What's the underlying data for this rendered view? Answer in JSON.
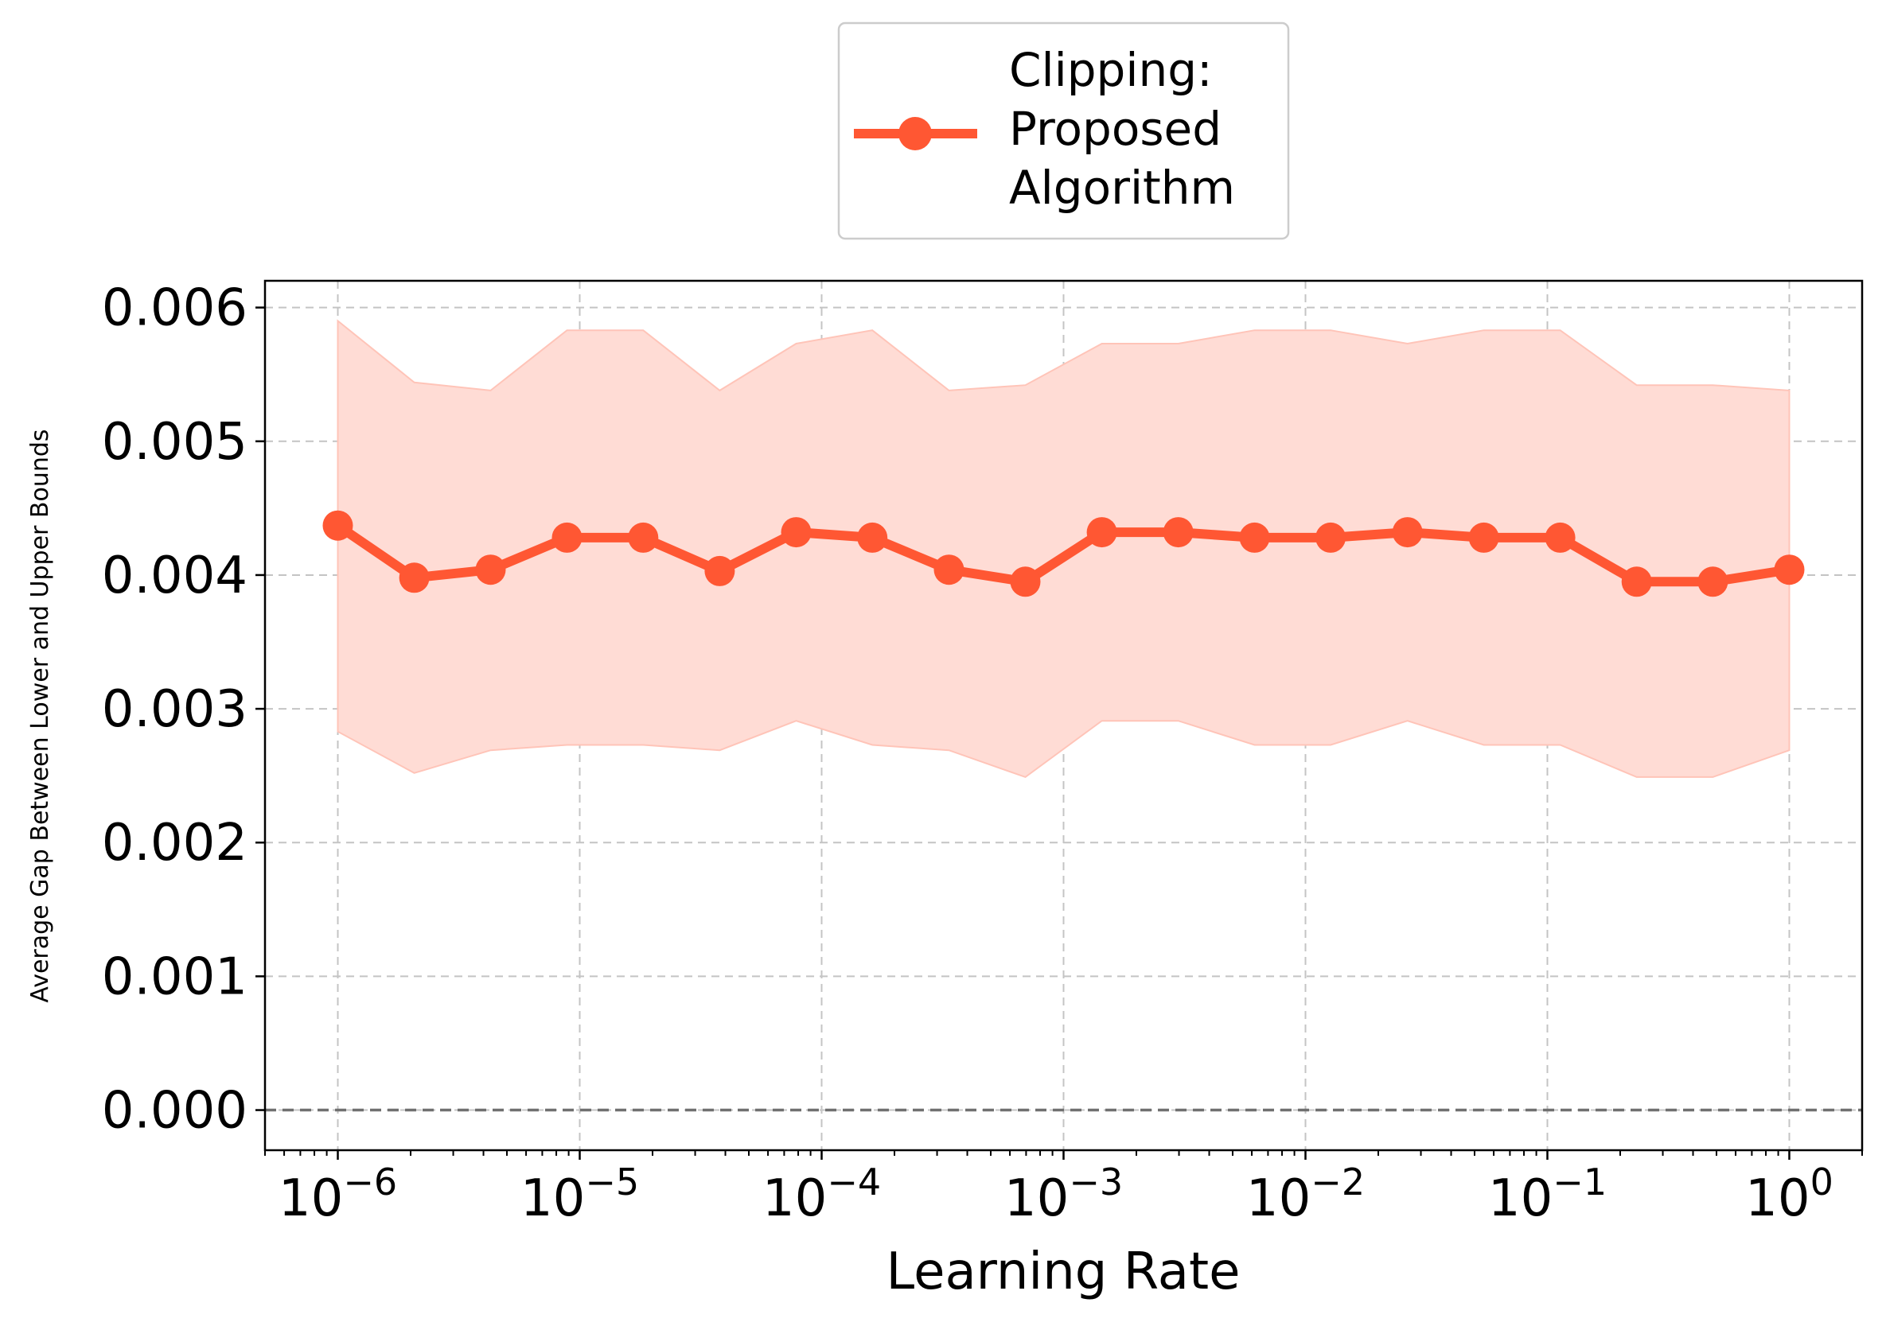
{
  "chart_data": {
    "type": "line",
    "xlabel": "Learning Rate",
    "ylabel": "Average Gap Between Lower and Upper Bounds",
    "xscale": "log",
    "xlim": [
      5e-07,
      2.0
    ],
    "ylim": [
      -0.0003,
      0.0062
    ],
    "grid": true,
    "legend_position": "above plot, centered",
    "x_ticks": [
      1e-06,
      1e-05,
      0.0001,
      0.001,
      0.01,
      0.1,
      1
    ],
    "x_tick_exponents": [
      "−6",
      "−5",
      "−4",
      "−3",
      "−2",
      "−1",
      "0"
    ],
    "x_tick_base": "10",
    "y_ticks": [
      "0.000",
      "0.001",
      "0.002",
      "0.003",
      "0.004",
      "0.005",
      "0.006"
    ],
    "reference_line": {
      "y": 0.0,
      "style": "dashed",
      "color": "#707070"
    },
    "x": [
      1e-06,
      2.07e-06,
      4.28e-06,
      8.86e-06,
      1.83e-05,
      3.79e-05,
      7.85e-05,
      0.000162,
      0.000336,
      0.000695,
      0.00144,
      0.00298,
      0.00616,
      0.0127,
      0.0264,
      0.0546,
      0.113,
      0.234,
      0.483,
      1.0
    ],
    "series": [
      {
        "name": "Clipping:\nProposed\nAlgorithm",
        "legend_lines": [
          "Clipping:",
          "Proposed",
          "Algorithm"
        ],
        "color": "#ff5733",
        "band_color": "#ffdcd5",
        "mean": [
          0.00437,
          0.00398,
          0.00404,
          0.00428,
          0.00428,
          0.00403,
          0.00432,
          0.00428,
          0.00404,
          0.00395,
          0.00432,
          0.00432,
          0.00428,
          0.00428,
          0.00432,
          0.00428,
          0.00428,
          0.00395,
          0.00395,
          0.00404
        ],
        "lower": [
          0.00283,
          0.00252,
          0.00269,
          0.00273,
          0.00273,
          0.00269,
          0.00291,
          0.00273,
          0.00269,
          0.00249,
          0.00291,
          0.00291,
          0.00273,
          0.00273,
          0.00291,
          0.00273,
          0.00273,
          0.00249,
          0.00249,
          0.00269
        ],
        "upper": [
          0.0059,
          0.00544,
          0.00538,
          0.00583,
          0.00583,
          0.00538,
          0.00573,
          0.00583,
          0.00538,
          0.00542,
          0.00573,
          0.00573,
          0.00583,
          0.00583,
          0.00573,
          0.00583,
          0.00583,
          0.00542,
          0.00542,
          0.00538
        ]
      }
    ]
  }
}
